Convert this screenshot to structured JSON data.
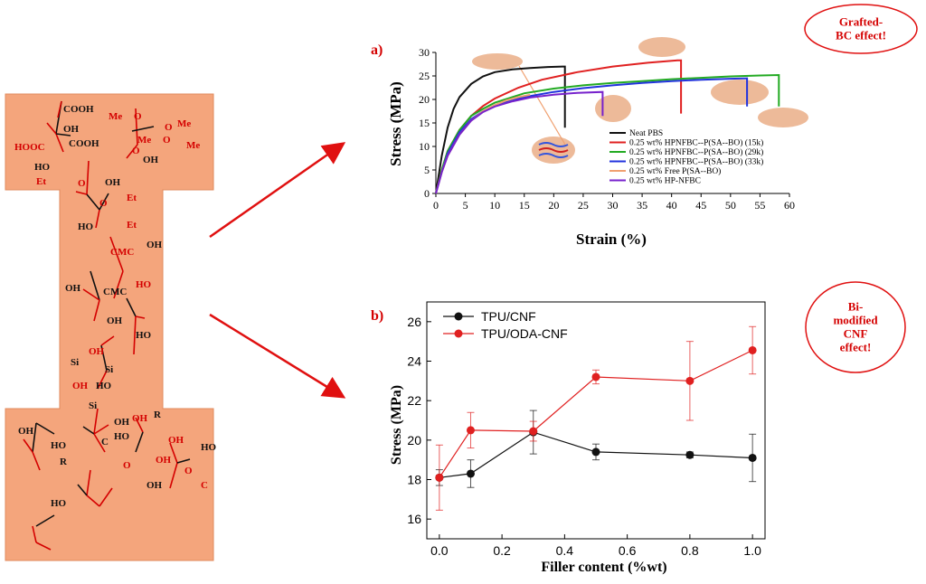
{
  "colors": {
    "dogbone_fill": "#f4a57c",
    "chem_red": "#d40000",
    "arrow_red": "#e01010",
    "blob": "#e8a980",
    "neat_pbs": "#111111",
    "c15k": "#e02020",
    "c29k": "#22aa22",
    "c33k": "#2233dd",
    "free": "#f0a070",
    "hpnfbc": "#7722cc",
    "tpu_cnf": "#111111",
    "tpu_oda": "#e02020"
  },
  "dogbone": {
    "labels": [
      "COOH",
      "HOOC",
      "OH",
      "COOH",
      "HO",
      "Me",
      "O",
      "O",
      "Me",
      "Me",
      "O",
      "O",
      "Me",
      "OH",
      "Et",
      "O",
      "OH",
      "O",
      "Et",
      "HO",
      "Et",
      "CMC",
      "OH",
      "OH",
      "CMC",
      "HO",
      "OH",
      "HO",
      "Si",
      "OH",
      "Si",
      "OH",
      "HO",
      "OH",
      "HO",
      "Si",
      "OH",
      "HO",
      "OH",
      "R",
      "C",
      "O",
      "OH",
      "HO",
      "OH",
      "O",
      "C",
      "R",
      "HO",
      "OH"
    ]
  },
  "badges": {
    "a": "Grafted-\nBC effect!",
    "b": "Bi-\nmodified\nCNF\neffect!"
  },
  "chart_data": [
    {
      "type": "line",
      "panel_label": "a)",
      "xlabel": "Strain (%)",
      "ylabel": "Stress (MPa)",
      "xlim": [
        0,
        60
      ],
      "ylim": [
        0,
        30
      ],
      "xticks": [
        0,
        5,
        10,
        15,
        20,
        25,
        30,
        35,
        40,
        45,
        50,
        55,
        60
      ],
      "yticks": [
        0,
        5,
        10,
        15,
        20,
        25,
        30
      ],
      "legend_position": "lower-right",
      "series": [
        {
          "name": "Neat PBS",
          "legend_html": "Neat PBS",
          "color_key": "neat_pbs",
          "x": [
            0,
            1,
            2,
            3,
            4,
            6,
            8,
            10,
            13,
            16,
            19,
            21.5,
            21.9,
            21.9
          ],
          "y": [
            0,
            8,
            14,
            18,
            20.5,
            23.3,
            24.9,
            25.8,
            26.4,
            26.7,
            26.9,
            27,
            27,
            14
          ]
        },
        {
          "name": "0.25 wt% HPNFBC-g-P(SA-alt-BO) (15k)",
          "legend_html": "0.25 wt% HPNFBC-<i>g</i>-P(SA-<i>alt</i>-BO) (15k)",
          "color_key": "c15k",
          "x": [
            0,
            1,
            2,
            4,
            6,
            8,
            10,
            14,
            18,
            24,
            30,
            36,
            41,
            41.6,
            41.6
          ],
          "y": [
            0,
            5,
            9,
            13.5,
            16.5,
            18.6,
            20.2,
            22.5,
            24.2,
            25.8,
            27,
            27.8,
            28.3,
            28.3,
            17
          ]
        },
        {
          "name": "0.25 wt% HPNFBC-g-P(SA-alt-BO) (29k)",
          "legend_html": "0.25 wt% HPNFBC-<i>g</i>-P(SA-<i>alt</i>-BO) (29k)",
          "color_key": "c29k",
          "x": [
            0,
            1,
            2,
            4,
            6,
            8,
            10,
            15,
            20,
            25,
            30,
            35,
            40,
            45,
            50,
            55,
            58.2,
            58.2
          ],
          "y": [
            0,
            5,
            9,
            13.5,
            16.5,
            18,
            19.3,
            21.3,
            22.3,
            23,
            23.5,
            23.9,
            24.3,
            24.6,
            24.9,
            25.1,
            25.2,
            18.5
          ]
        },
        {
          "name": "0.25 wt% HPNFBC-g-P(SA-alt-BO) (33k)",
          "legend_html": "0.25 wt% HPNFBC-<i>g</i>-P(SA-<i>alt</i>-BO) (33k)",
          "color_key": "c33k",
          "x": [
            0,
            1,
            2,
            4,
            6,
            8,
            10,
            15,
            20,
            25,
            30,
            35,
            40,
            45,
            50,
            52.8,
            52.8
          ],
          "y": [
            0,
            4.5,
            8.5,
            13,
            15.8,
            17.5,
            18.7,
            20.5,
            21.6,
            22.4,
            23,
            23.5,
            23.9,
            24.2,
            24.4,
            24.5,
            18.5
          ]
        },
        {
          "name": "0.25 wt% Free P(SA-alt-BO)",
          "legend_html": "0.25 wt% Free P(SA-<i>alt</i>-BO)",
          "color_key": "free",
          "x": [
            0,
            1,
            2,
            4,
            6,
            8,
            10,
            12,
            14,
            16
          ],
          "y": [
            0,
            4.5,
            8,
            12.5,
            15.5,
            17.5,
            18.8,
            19.8,
            20.5,
            21
          ]
        },
        {
          "name": "0.25 wt% HP-NFBC",
          "legend_html": "0.25 wt% HP-NFBC",
          "color_key": "hpnfbc",
          "x": [
            0,
            1,
            2,
            4,
            6,
            8,
            10,
            13,
            16,
            20,
            24,
            28.3,
            28.3
          ],
          "y": [
            0,
            4.5,
            8,
            12.5,
            15.5,
            17.3,
            18.5,
            19.6,
            20.4,
            21,
            21.4,
            21.6,
            16.5
          ]
        }
      ]
    },
    {
      "type": "line",
      "panel_label": "b)",
      "xlabel": "Filler content (%wt)",
      "ylabel": "Stress (MPa)",
      "xlim": [
        -0.04,
        1.04
      ],
      "ylim": [
        15,
        27
      ],
      "xticks": [
        0,
        0.2,
        0.4,
        0.6,
        0.8,
        1.0
      ],
      "xtick_labels": [
        "0.0",
        "0.2",
        "0.4",
        "0.6",
        "0.8",
        "1.0"
      ],
      "yticks": [
        16,
        18,
        20,
        22,
        24,
        26
      ],
      "legend_position": "top-left",
      "series": [
        {
          "name": "TPU/CNF",
          "color_key": "tpu_cnf",
          "x": [
            0,
            0.1,
            0.3,
            0.5,
            0.8,
            1.0
          ],
          "y": [
            18.1,
            18.3,
            20.4,
            19.4,
            19.25,
            19.1
          ],
          "err": [
            0.4,
            0.7,
            1.1,
            0.4,
            0.15,
            1.2
          ]
        },
        {
          "name": "TPU/ODA-CNF",
          "color_key": "tpu_oda",
          "x": [
            0,
            0.1,
            0.3,
            0.5,
            0.8,
            1.0
          ],
          "y": [
            18.1,
            20.5,
            20.45,
            23.2,
            23.0,
            24.55
          ],
          "err": [
            1.65,
            0.9,
            0.5,
            0.35,
            2.0,
            1.2
          ]
        }
      ]
    }
  ]
}
